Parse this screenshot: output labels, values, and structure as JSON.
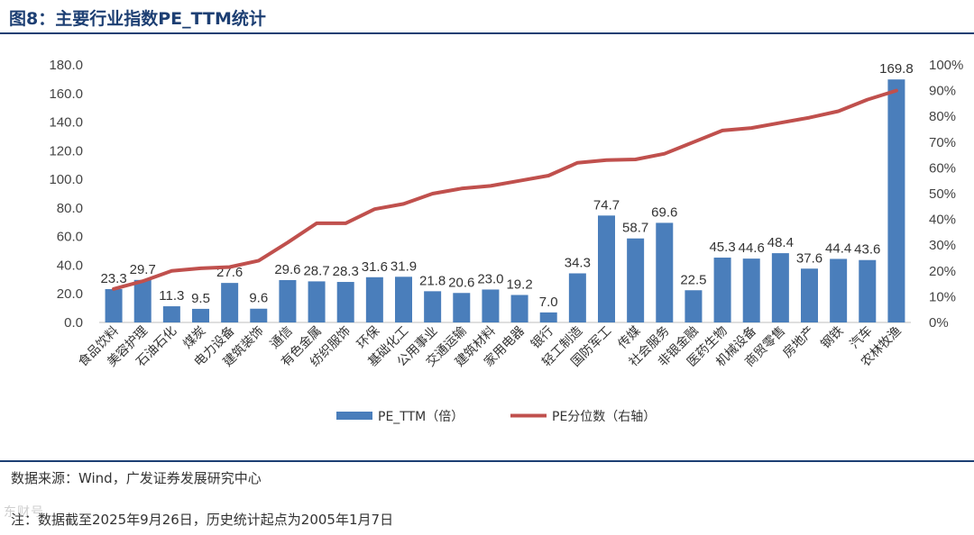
{
  "header": {
    "title": "图8：主要行业指数PE_TTM统计"
  },
  "chart_data": {
    "type": "bar",
    "categories": [
      "食品饮料",
      "美容护理",
      "石油石化",
      "煤炭",
      "电力设备",
      "建筑装饰",
      "通信",
      "有色金属",
      "纺织服饰",
      "环保",
      "基础化工",
      "公用事业",
      "交通运输",
      "建筑材料",
      "家用电器",
      "银行",
      "轻工制造",
      "国防军工",
      "传媒",
      "社会服务",
      "非银金融",
      "医药生物",
      "机械设备",
      "商贸零售",
      "房地产",
      "钢铁",
      "汽车",
      "农林牧渔"
    ],
    "series": [
      {
        "name": "PE_TTM（倍）",
        "type": "bar",
        "axis": "left",
        "color": "#4a7ebb",
        "values": [
          23.3,
          29.7,
          11.3,
          9.5,
          27.6,
          9.6,
          29.6,
          28.7,
          28.3,
          31.6,
          31.9,
          21.8,
          20.6,
          23.0,
          19.2,
          7.0,
          34.3,
          74.7,
          58.7,
          69.6,
          22.5,
          45.3,
          44.6,
          48.4,
          37.6,
          44.4,
          43.6,
          169.8
        ],
        "labels": [
          "23.3",
          "29.7",
          "11.3",
          "9.5",
          "27.6",
          "9.6",
          "29.6",
          "28.7",
          "28.3",
          "31.6",
          "31.9",
          "21.8",
          "20.6",
          "23.0",
          "19.2",
          "7.0",
          "34.3",
          "74.7",
          "58.7",
          "69.6",
          "22.5",
          "45.3",
          "44.6",
          "48.4",
          "37.6",
          "44.4",
          "43.6",
          "169.8"
        ]
      },
      {
        "name": "PE分位数（右轴）",
        "type": "line",
        "axis": "right",
        "color": "#c0504d",
        "values": [
          13,
          16,
          20,
          21,
          21.5,
          24,
          31,
          38.5,
          38.5,
          44,
          46,
          50,
          52,
          53,
          55,
          57,
          62,
          63,
          63.3,
          65.5,
          70,
          74.5,
          75.5,
          77.5,
          79.5,
          82,
          86.5,
          90
        ]
      }
    ],
    "y_left": {
      "min": 0,
      "max": 180,
      "step": 20,
      "tick_labels": [
        "0.0",
        "20.0",
        "40.0",
        "60.0",
        "80.0",
        "100.0",
        "120.0",
        "140.0",
        "160.0",
        "180.0"
      ]
    },
    "y_right": {
      "min": 0,
      "max": 100,
      "step": 10,
      "tick_labels": [
        "0%",
        "10%",
        "20%",
        "30%",
        "40%",
        "50%",
        "60%",
        "70%",
        "80%",
        "90%",
        "100%"
      ]
    },
    "legend": {
      "position": "bottom"
    }
  },
  "footer": {
    "source": "数据来源：Wind，广发证券发展研究中心",
    "note": "注：数据截至2025年9月26日，历史统计起点为2005年1月7日",
    "watermark": "东财号"
  }
}
